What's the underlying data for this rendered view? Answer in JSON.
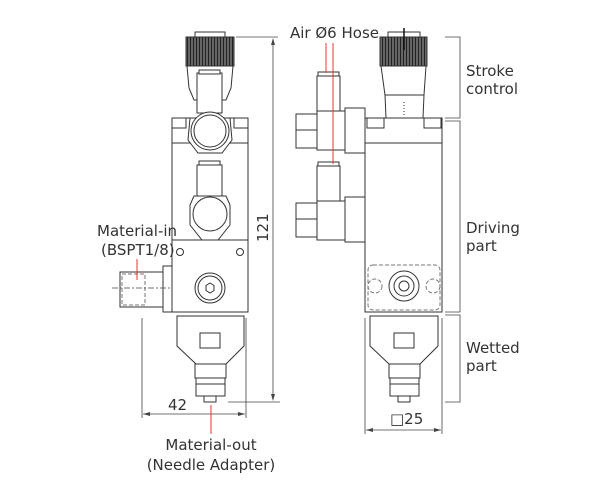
{
  "labels": {
    "air_hose": "Air Ø6 Hose",
    "stroke_control_1": "Stroke",
    "stroke_control_2": "control",
    "driving_part_1": "Driving",
    "driving_part_2": "part",
    "wetted_part_1": "Wetted",
    "wetted_part_2": "part",
    "material_in_1": "Material-in",
    "material_in_2": "(BSPT1/8)",
    "material_out_1": "Material-out",
    "material_out_2": "(Needle Adapter)"
  },
  "dimensions": {
    "height": "121",
    "width_front": "42",
    "width_side": "□25"
  },
  "colors": {
    "leader_line": "#e53935",
    "outline": "#333333"
  }
}
